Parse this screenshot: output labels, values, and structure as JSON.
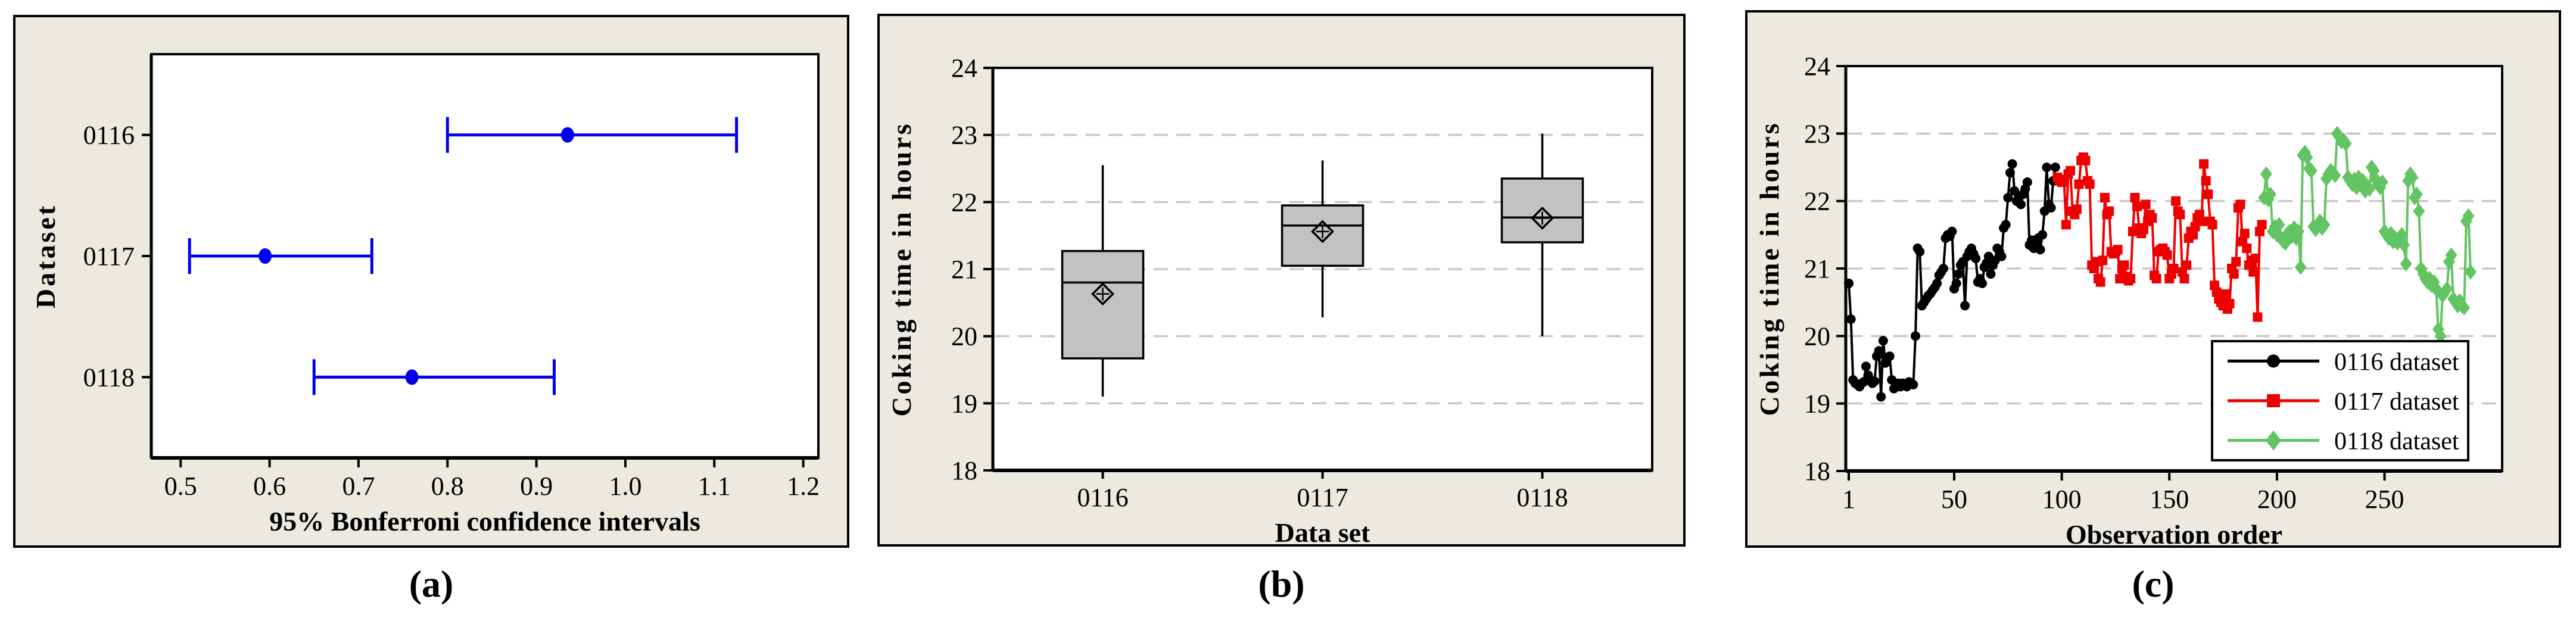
{
  "colors": {
    "page_background": "#FFFFFF",
    "panel_background": "#ECE9DF",
    "plot_background": "#FFFFFF",
    "axis_line": "#000000",
    "gridline": "#C8C8C8",
    "interval_blue": "#0000EE",
    "box_fill": "#C2C2C2",
    "series_black": "#000000",
    "series_red": "#EF0000",
    "series_green": "#62C462"
  },
  "panels": [
    {
      "id": "a",
      "caption": "(a)",
      "chart_data": {
        "type": "interval",
        "title": "",
        "xlabel": "95% Bonferroni confidence intervals",
        "ylabel": "Dataset",
        "categories": [
          "0116",
          "0117",
          "0118"
        ],
        "x_tick_values": [
          0.5,
          0.6,
          0.7,
          0.8,
          0.9,
          1.0,
          1.1,
          1.2
        ],
        "x_tick_labels": [
          "0.5",
          "0.6",
          "0.7",
          "0.8",
          "0.9",
          "1.0",
          "1.1",
          "1.2"
        ],
        "xlim": [
          0.467,
          1.217
        ],
        "grid": false,
        "intervals": [
          {
            "category": "0116",
            "low": 0.8,
            "center": 0.935,
            "high": 1.125
          },
          {
            "category": "0117",
            "low": 0.51,
            "center": 0.595,
            "high": 0.715
          },
          {
            "category": "0118",
            "low": 0.65,
            "center": 0.76,
            "high": 0.92
          }
        ],
        "color_key": "interval_blue"
      }
    },
    {
      "id": "b",
      "caption": "(b)",
      "chart_data": {
        "type": "box",
        "title": "",
        "xlabel": "Data set",
        "ylabel": "Coking time in hours",
        "categories": [
          "0116",
          "0117",
          "0118"
        ],
        "ylim": [
          18,
          24
        ],
        "y_ticks": [
          18,
          19,
          20,
          21,
          22,
          23,
          24
        ],
        "grid_y": [
          19,
          20,
          21,
          22,
          23
        ],
        "boxes": [
          {
            "category": "0116",
            "whisker_low": 19.1,
            "q1": 19.67,
            "median": 20.8,
            "q3": 21.27,
            "whisker_high": 22.55,
            "mean": 20.63
          },
          {
            "category": "0117",
            "whisker_low": 20.28,
            "q1": 21.05,
            "median": 21.65,
            "q3": 21.95,
            "whisker_high": 22.62,
            "mean": 21.56
          },
          {
            "category": "0118",
            "whisker_low": 20.0,
            "q1": 21.4,
            "median": 21.77,
            "q3": 22.35,
            "whisker_high": 23.02,
            "mean": 21.76
          }
        ],
        "box_fill_key": "box_fill"
      }
    },
    {
      "id": "c",
      "caption": "(c)",
      "chart_data": {
        "type": "line",
        "title": "",
        "xlabel": "Observation order",
        "ylabel": "Coking time in hours",
        "ylim": [
          18,
          24
        ],
        "y_ticks": [
          18,
          19,
          20,
          21,
          22,
          23,
          24
        ],
        "grid_y": [
          19,
          20,
          21,
          22,
          23
        ],
        "x_ticks": [
          1,
          50,
          100,
          150,
          200,
          250
        ],
        "xlim": [
          1,
          304
        ],
        "legend": {
          "position": "bottom-right",
          "entries": [
            "0116 dataset",
            "0117 dataset",
            "0118 dataset"
          ]
        },
        "series": [
          {
            "name": "0116 dataset",
            "marker": "circle",
            "color_key": "series_black",
            "start_x": 1,
            "y": [
              20.78,
              20.25,
              19.35,
              19.3,
              19.28,
              19.25,
              19.3,
              19.32,
              19.55,
              19.42,
              19.35,
              19.3,
              19.33,
              19.7,
              19.78,
              19.1,
              19.93,
              19.6,
              19.68,
              19.7,
              19.35,
              19.22,
              19.28,
              19.3,
              19.25,
              19.3,
              19.28,
              19.25,
              19.32,
              19.3,
              19.28,
              20.0,
              21.3,
              21.25,
              20.45,
              20.5,
              20.55,
              20.6,
              20.63,
              20.68,
              20.72,
              20.78,
              20.9,
              20.95,
              21.0,
              21.45,
              21.5,
              21.48,
              21.55,
              20.7,
              20.78,
              20.92,
              21.05,
              21.1,
              20.45,
              21.18,
              21.25,
              21.3,
              21.22,
              21.15,
              20.8,
              20.85,
              20.78,
              21.02,
              21.08,
              21.18,
              20.92,
              21.05,
              21.12,
              21.3,
              21.25,
              21.18,
              21.6,
              21.65,
              22.05,
              22.42,
              22.55,
              22.15,
              22.0,
              22.05,
              21.95,
              22.1,
              22.18,
              22.28,
              21.35,
              21.42,
              21.3,
              21.35,
              21.45,
              21.28,
              21.5,
              21.85,
              22.5,
              21.95,
              21.9,
              22.3,
              22.5
            ]
          },
          {
            "name": "0117 dataset",
            "marker": "square",
            "color_key": "series_red",
            "start_x": 98,
            "y": [
              22.35,
              22.3,
              22.28,
              22.32,
              21.65,
              22.4,
              22.45,
              21.85,
              21.8,
              21.88,
              22.25,
              22.6,
              22.65,
              22.6,
              22.3,
              22.25,
              21.05,
              21.0,
              21.1,
              20.85,
              20.8,
              21.12,
              22.05,
              21.8,
              21.85,
              21.25,
              21.22,
              21.25,
              21.28,
              20.85,
              21.0,
              21.05,
              20.88,
              20.82,
              20.85,
              21.55,
              22.05,
              21.92,
              21.6,
              21.52,
              21.58,
              21.95,
              21.7,
              21.8,
              21.75,
              20.9,
              20.85,
              21.25,
              21.28,
              21.3,
              21.25,
              21.2,
              20.85,
              20.92,
              21.0,
              22.0,
              21.85,
              21.8,
              20.95,
              20.85,
              21.05,
              21.45,
              21.55,
              21.5,
              21.62,
              21.75,
              21.8,
              21.7,
              22.55,
              22.3,
              22.1,
              21.7,
              21.65,
              20.75,
              20.65,
              20.55,
              20.5,
              20.45,
              20.62,
              20.4,
              20.48,
              21.0,
              20.92,
              21.1,
              21.9,
              21.95,
              21.4,
              21.52,
              21.3,
              21.05,
              21.12,
              20.95,
              21.15,
              20.28,
              21.55,
              21.65
            ]
          },
          {
            "name": "0118 dataset",
            "marker": "diamond",
            "color_key": "series_green",
            "start_x": 194,
            "y": [
              22.05,
              22.4,
              22.02,
              22.1,
              21.55,
              21.62,
              21.5,
              21.65,
              21.45,
              21.4,
              21.38,
              21.52,
              21.55,
              21.48,
              21.6,
              21.45,
              21.55,
              21.02,
              22.68,
              22.72,
              22.65,
              22.48,
              22.45,
              21.62,
              21.58,
              21.65,
              21.7,
              21.6,
              21.65,
              22.33,
              22.4,
              22.45,
              22.42,
              22.38,
              23.0,
              22.95,
              22.88,
              22.9,
              22.85,
              22.35,
              22.3,
              22.25,
              22.32,
              22.2,
              22.35,
              22.28,
              22.3,
              22.15,
              22.22,
              22.18,
              22.5,
              22.45,
              22.32,
              22.25,
              22.2,
              22.28,
              21.55,
              21.5,
              21.45,
              21.52,
              21.4,
              21.45,
              21.38,
              21.42,
              21.5,
              21.35,
              21.07,
              22.3,
              22.4,
              22.35,
              22.05,
              22.1,
              21.85,
              21.0,
              20.92,
              20.85,
              20.8,
              20.85,
              20.75,
              20.8,
              20.7,
              20.1,
              20.0,
              20.6,
              20.65,
              20.7,
              21.1,
              21.2,
              20.55,
              20.5,
              20.45,
              20.52,
              20.45,
              20.42,
              21.7,
              21.78,
              20.95
            ]
          }
        ]
      }
    }
  ]
}
